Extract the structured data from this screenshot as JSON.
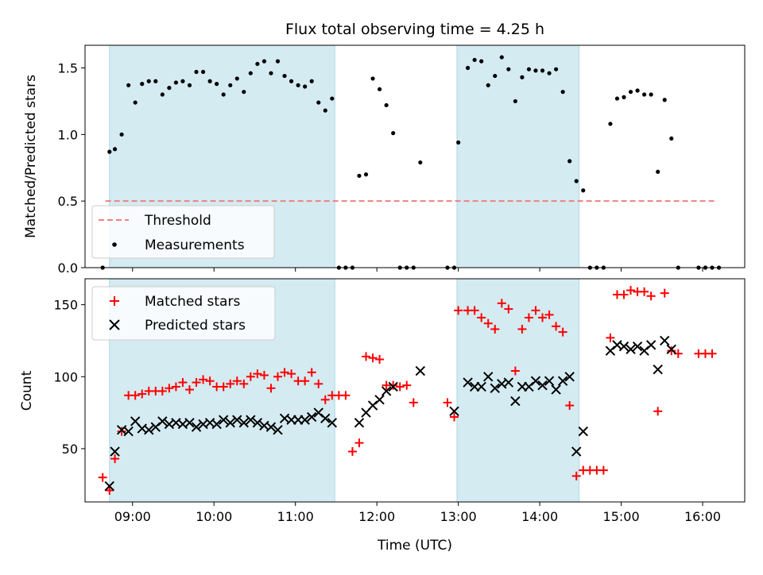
{
  "chart_data": [
    {
      "type": "scatter",
      "title": "Flux total observing time = 4.25 h",
      "ylabel": "Matched/Predicted stars",
      "xlabel": "",
      "xlim": [
        "08:25",
        "16:31"
      ],
      "ylim": [
        0,
        1.67
      ],
      "yticks": [
        0.0,
        0.5,
        1.0,
        1.5
      ],
      "ytick_labels": [
        "0.0",
        "0.5",
        "1.0",
        "1.5"
      ],
      "grid": false,
      "legend_position": "lower-left",
      "shaded_intervals": [
        [
          "08:43",
          "11:29"
        ],
        [
          "12:59",
          "14:29"
        ]
      ],
      "shade_color": "#add8e6",
      "threshold": {
        "name": "Threshold",
        "value": 0.5,
        "x_range": [
          "08:40",
          "16:10"
        ],
        "color": "#f08080",
        "style": "dashed"
      },
      "series": [
        {
          "name": "Measurements",
          "color": "#000000",
          "marker": "dot",
          "points": [
            [
              "08:38",
              0.0
            ],
            [
              "08:43",
              0.87
            ],
            [
              "08:47",
              0.89
            ],
            [
              "08:52",
              1.0
            ],
            [
              "08:57",
              1.37
            ],
            [
              "09:02",
              1.24
            ],
            [
              "09:07",
              1.38
            ],
            [
              "09:12",
              1.4
            ],
            [
              "09:17",
              1.4
            ],
            [
              "09:22",
              1.3
            ],
            [
              "09:27",
              1.35
            ],
            [
              "09:32",
              1.39
            ],
            [
              "09:37",
              1.4
            ],
            [
              "09:42",
              1.37
            ],
            [
              "09:47",
              1.47
            ],
            [
              "09:52",
              1.47
            ],
            [
              "09:57",
              1.4
            ],
            [
              "10:02",
              1.38
            ],
            [
              "10:07",
              1.3
            ],
            [
              "10:12",
              1.37
            ],
            [
              "10:17",
              1.42
            ],
            [
              "10:22",
              1.32
            ],
            [
              "10:27",
              1.46
            ],
            [
              "10:32",
              1.53
            ],
            [
              "10:37",
              1.55
            ],
            [
              "10:42",
              1.46
            ],
            [
              "10:47",
              1.55
            ],
            [
              "10:52",
              1.44
            ],
            [
              "10:57",
              1.4
            ],
            [
              "11:02",
              1.37
            ],
            [
              "11:07",
              1.36
            ],
            [
              "11:12",
              1.4
            ],
            [
              "11:17",
              1.24
            ],
            [
              "11:22",
              1.18
            ],
            [
              "11:27",
              1.27
            ],
            [
              "11:32",
              0.0
            ],
            [
              "11:37",
              0.0
            ],
            [
              "11:42",
              0.0
            ],
            [
              "11:47",
              0.69
            ],
            [
              "11:52",
              0.7
            ],
            [
              "11:57",
              1.42
            ],
            [
              "12:02",
              1.34
            ],
            [
              "12:07",
              1.22
            ],
            [
              "12:12",
              1.01
            ],
            [
              "12:17",
              0.0
            ],
            [
              "12:22",
              0.0
            ],
            [
              "12:27",
              0.0
            ],
            [
              "12:32",
              0.79
            ],
            [
              "12:52",
              0.0
            ],
            [
              "12:57",
              0.0
            ],
            [
              "13:00",
              0.94
            ],
            [
              "13:07",
              1.5
            ],
            [
              "13:12",
              1.56
            ],
            [
              "13:17",
              1.55
            ],
            [
              "13:22",
              1.37
            ],
            [
              "13:27",
              1.44
            ],
            [
              "13:32",
              1.58
            ],
            [
              "13:37",
              1.49
            ],
            [
              "13:42",
              1.25
            ],
            [
              "13:47",
              1.43
            ],
            [
              "13:52",
              1.49
            ],
            [
              "13:57",
              1.48
            ],
            [
              "14:02",
              1.48
            ],
            [
              "14:07",
              1.46
            ],
            [
              "14:12",
              1.49
            ],
            [
              "14:17",
              1.32
            ],
            [
              "14:22",
              0.8
            ],
            [
              "14:27",
              0.65
            ],
            [
              "14:32",
              0.58
            ],
            [
              "14:37",
              0.0
            ],
            [
              "14:42",
              0.0
            ],
            [
              "14:47",
              0.0
            ],
            [
              "14:52",
              1.08
            ],
            [
              "14:57",
              1.27
            ],
            [
              "15:02",
              1.28
            ],
            [
              "15:07",
              1.32
            ],
            [
              "15:12",
              1.33
            ],
            [
              "15:17",
              1.3
            ],
            [
              "15:22",
              1.3
            ],
            [
              "15:27",
              0.72
            ],
            [
              "15:32",
              1.26
            ],
            [
              "15:37",
              0.97
            ],
            [
              "15:42",
              0.0
            ],
            [
              "15:57",
              0.0
            ],
            [
              "16:02",
              0.0
            ],
            [
              "16:07",
              0.0
            ],
            [
              "16:12",
              0.0
            ]
          ]
        }
      ],
      "legend": [
        "Threshold",
        "Measurements"
      ]
    },
    {
      "type": "scatter",
      "title": "",
      "ylabel": "Count",
      "xlabel": "Time (UTC)",
      "xlim": [
        "08:25",
        "16:31"
      ],
      "ylim": [
        13,
        168
      ],
      "yticks": [
        50,
        100,
        150
      ],
      "ytick_labels": [
        "50",
        "100",
        "150"
      ],
      "xticks": [
        "09:00",
        "10:00",
        "11:00",
        "12:00",
        "13:00",
        "14:00",
        "15:00",
        "16:00"
      ],
      "grid": false,
      "legend_position": "upper-left",
      "shaded_intervals": [
        [
          "08:43",
          "11:29"
        ],
        [
          "12:59",
          "14:29"
        ]
      ],
      "shade_color": "#add8e6",
      "series": [
        {
          "name": "Matched stars",
          "color": "#ff0000",
          "marker": "plus",
          "points": [
            [
              "08:38",
              30
            ],
            [
              "08:43",
              21
            ],
            [
              "08:47",
              43
            ],
            [
              "08:52",
              62
            ],
            [
              "08:57",
              87
            ],
            [
              "09:02",
              87
            ],
            [
              "09:07",
              88
            ],
            [
              "09:12",
              90
            ],
            [
              "09:17",
              90
            ],
            [
              "09:22",
              90
            ],
            [
              "09:27",
              92
            ],
            [
              "09:32",
              93
            ],
            [
              "09:37",
              96
            ],
            [
              "09:42",
              91
            ],
            [
              "09:47",
              96
            ],
            [
              "09:52",
              98
            ],
            [
              "09:57",
              97
            ],
            [
              "10:02",
              93
            ],
            [
              "10:07",
              93
            ],
            [
              "10:12",
              95
            ],
            [
              "10:17",
              97
            ],
            [
              "10:22",
              95
            ],
            [
              "10:27",
              100
            ],
            [
              "10:32",
              102
            ],
            [
              "10:37",
              101
            ],
            [
              "10:42",
              92
            ],
            [
              "10:47",
              100
            ],
            [
              "10:52",
              103
            ],
            [
              "10:57",
              102
            ],
            [
              "11:02",
              97
            ],
            [
              "11:07",
              97
            ],
            [
              "11:12",
              103
            ],
            [
              "11:17",
              95
            ],
            [
              "11:22",
              84
            ],
            [
              "11:27",
              87
            ],
            [
              "11:32",
              87
            ],
            [
              "11:37",
              87
            ],
            [
              "11:42",
              48
            ],
            [
              "11:47",
              54
            ],
            [
              "11:52",
              114
            ],
            [
              "11:57",
              113
            ],
            [
              "12:02",
              112
            ],
            [
              "12:07",
              94
            ],
            [
              "12:12",
              94
            ],
            [
              "12:17",
              93
            ],
            [
              "12:22",
              94
            ],
            [
              "12:27",
              82
            ],
            [
              "12:52",
              82
            ],
            [
              "12:57",
              72
            ],
            [
              "13:00",
              146
            ],
            [
              "13:07",
              146
            ],
            [
              "13:12",
              146
            ],
            [
              "13:17",
              141
            ],
            [
              "13:22",
              137
            ],
            [
              "13:27",
              133
            ],
            [
              "13:32",
              151
            ],
            [
              "13:37",
              147
            ],
            [
              "13:42",
              104
            ],
            [
              "13:47",
              133
            ],
            [
              "13:52",
              141
            ],
            [
              "13:57",
              146
            ],
            [
              "14:02",
              141
            ],
            [
              "14:07",
              143
            ],
            [
              "14:12",
              135
            ],
            [
              "14:17",
              131
            ],
            [
              "14:22",
              80
            ],
            [
              "14:27",
              31
            ],
            [
              "14:32",
              35
            ],
            [
              "14:37",
              35
            ],
            [
              "14:42",
              35
            ],
            [
              "14:47",
              35
            ],
            [
              "14:52",
              127
            ],
            [
              "14:57",
              157
            ],
            [
              "15:02",
              157
            ],
            [
              "15:07",
              160
            ],
            [
              "15:12",
              159
            ],
            [
              "15:17",
              159
            ],
            [
              "15:22",
              156
            ],
            [
              "15:27",
              76
            ],
            [
              "15:32",
              158
            ],
            [
              "15:37",
              118
            ],
            [
              "15:42",
              116
            ],
            [
              "15:57",
              116
            ],
            [
              "16:02",
              116
            ],
            [
              "16:07",
              116
            ]
          ]
        },
        {
          "name": "Predicted stars",
          "color": "#000000",
          "marker": "x",
          "points": [
            [
              "08:43",
              24
            ],
            [
              "08:47",
              48
            ],
            [
              "08:52",
              63
            ],
            [
              "08:57",
              62
            ],
            [
              "09:02",
              69
            ],
            [
              "09:07",
              64
            ],
            [
              "09:12",
              63
            ],
            [
              "09:17",
              65
            ],
            [
              "09:22",
              69
            ],
            [
              "09:27",
              67
            ],
            [
              "09:32",
              68
            ],
            [
              "09:37",
              67
            ],
            [
              "09:42",
              68
            ],
            [
              "09:47",
              65
            ],
            [
              "09:52",
              67
            ],
            [
              "09:57",
              68
            ],
            [
              "10:02",
              67
            ],
            [
              "10:07",
              70
            ],
            [
              "10:12",
              68
            ],
            [
              "10:17",
              70
            ],
            [
              "10:22",
              68
            ],
            [
              "10:27",
              70
            ],
            [
              "10:32",
              68
            ],
            [
              "10:37",
              66
            ],
            [
              "10:42",
              65
            ],
            [
              "10:47",
              63
            ],
            [
              "10:52",
              71
            ],
            [
              "10:57",
              70
            ],
            [
              "11:02",
              70
            ],
            [
              "11:07",
              70
            ],
            [
              "11:12",
              72
            ],
            [
              "11:17",
              75
            ],
            [
              "11:22",
              71
            ],
            [
              "11:27",
              68
            ],
            [
              "11:47",
              68
            ],
            [
              "11:52",
              75
            ],
            [
              "11:57",
              80
            ],
            [
              "12:02",
              84
            ],
            [
              "12:07",
              90
            ],
            [
              "12:12",
              93
            ],
            [
              "12:32",
              104
            ],
            [
              "12:57",
              76
            ],
            [
              "13:07",
              96
            ],
            [
              "13:12",
              93
            ],
            [
              "13:17",
              93
            ],
            [
              "13:22",
              100
            ],
            [
              "13:27",
              92
            ],
            [
              "13:32",
              95
            ],
            [
              "13:37",
              96
            ],
            [
              "13:42",
              83
            ],
            [
              "13:47",
              93
            ],
            [
              "13:52",
              93
            ],
            [
              "13:57",
              97
            ],
            [
              "14:02",
              94
            ],
            [
              "14:07",
              97
            ],
            [
              "14:12",
              91
            ],
            [
              "14:17",
              97
            ],
            [
              "14:22",
              100
            ],
            [
              "14:27",
              48
            ],
            [
              "14:32",
              62
            ],
            [
              "14:52",
              118
            ],
            [
              "14:57",
              122
            ],
            [
              "15:02",
              121
            ],
            [
              "15:07",
              119
            ],
            [
              "15:12",
              121
            ],
            [
              "15:17",
              118
            ],
            [
              "15:22",
              122
            ],
            [
              "15:27",
              105
            ],
            [
              "15:32",
              125
            ],
            [
              "15:37",
              119
            ]
          ]
        }
      ],
      "legend": [
        "Matched stars",
        "Predicted stars"
      ]
    }
  ]
}
